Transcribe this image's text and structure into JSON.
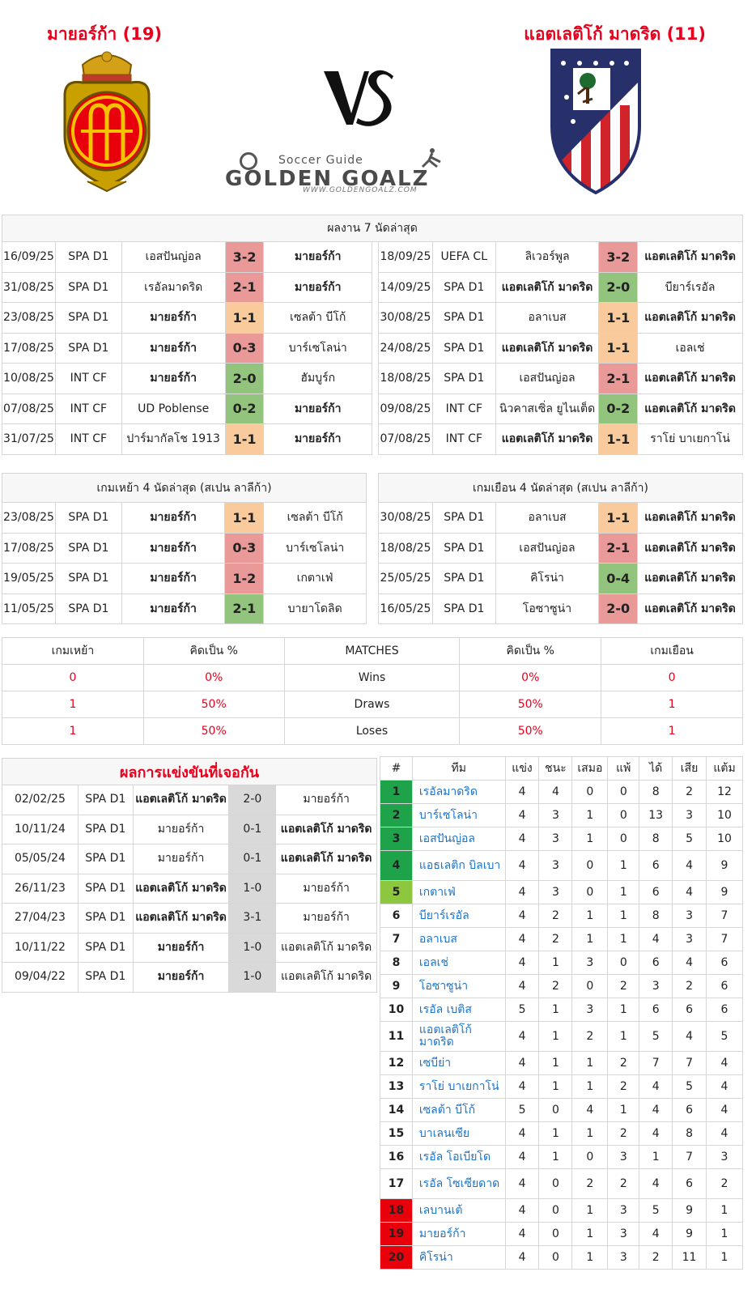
{
  "header": {
    "home_title": "มายอร์ก้า (19)",
    "away_title": "แอตเลติโก้ มาดริด (11)",
    "vs_text": "VS",
    "brand_tagline": "Soccer Guide",
    "brand_name": "GOLDEN GOALZ",
    "brand_url": "WWW.GOLDENGOALZ.COM"
  },
  "last7": {
    "title": "ผลงาน 7 นัดล่าสุด",
    "home": [
      {
        "date": "16/09/25",
        "comp": "SPA D1",
        "home": "เอสปันญ่อล",
        "score": "3-2",
        "away": "มายอร์ก้า",
        "bold": "away",
        "result": "loss"
      },
      {
        "date": "31/08/25",
        "comp": "SPA D1",
        "home": "เรอัลมาดริด",
        "score": "2-1",
        "away": "มายอร์ก้า",
        "bold": "away",
        "result": "loss"
      },
      {
        "date": "23/08/25",
        "comp": "SPA D1",
        "home": "มายอร์ก้า",
        "score": "1-1",
        "away": "เซลต้า บีโก้",
        "bold": "home",
        "result": "draw"
      },
      {
        "date": "17/08/25",
        "comp": "SPA D1",
        "home": "มายอร์ก้า",
        "score": "0-3",
        "away": "บาร์เซโลน่า",
        "bold": "home",
        "result": "loss"
      },
      {
        "date": "10/08/25",
        "comp": "INT CF",
        "home": "มายอร์ก้า",
        "score": "2-0",
        "away": "ฮัมบูร์ก",
        "bold": "home",
        "result": "win"
      },
      {
        "date": "07/08/25",
        "comp": "INT CF",
        "home": "UD Poblense",
        "score": "0-2",
        "away": "มายอร์ก้า",
        "bold": "away",
        "result": "win"
      },
      {
        "date": "31/07/25",
        "comp": "INT CF",
        "home": "ปาร์มากัลโช 1913",
        "score": "1-1",
        "away": "มายอร์ก้า",
        "bold": "away",
        "result": "draw"
      }
    ],
    "away": [
      {
        "date": "18/09/25",
        "comp": "UEFA CL",
        "home": "ลิเวอร์พูล",
        "score": "3-2",
        "away": "แอตเลติโก้ มาดริด",
        "bold": "away",
        "result": "loss"
      },
      {
        "date": "14/09/25",
        "comp": "SPA D1",
        "home": "แอตเลติโก้ มาดริด",
        "score": "2-0",
        "away": "บียาร์เรอัล",
        "bold": "home",
        "result": "win"
      },
      {
        "date": "30/08/25",
        "comp": "SPA D1",
        "home": "อลาเบส",
        "score": "1-1",
        "away": "แอตเลติโก้ มาดริด",
        "bold": "away",
        "result": "draw"
      },
      {
        "date": "24/08/25",
        "comp": "SPA D1",
        "home": "แอตเลติโก้ มาดริด",
        "score": "1-1",
        "away": "เอลเช่",
        "bold": "home",
        "result": "draw"
      },
      {
        "date": "18/08/25",
        "comp": "SPA D1",
        "home": "เอสปันญ่อล",
        "score": "2-1",
        "away": "แอตเลติโก้ มาดริด",
        "bold": "away",
        "result": "loss"
      },
      {
        "date": "09/08/25",
        "comp": "INT CF",
        "home": "นิวคาสเซิ่ล ยูไนเต็ด",
        "score": "0-2",
        "away": "แอตเลติโก้ มาดริด",
        "bold": "away",
        "result": "win"
      },
      {
        "date": "07/08/25",
        "comp": "INT CF",
        "home": "แอตเลติโก้ มาดริด",
        "score": "1-1",
        "away": "ราโย่ บาเยกาโน่",
        "bold": "home",
        "result": "draw"
      }
    ]
  },
  "last4": {
    "home_title": "เกมเหย้า 4 นัดล่าสุด (สเปน ลาลีก้า)",
    "away_title": "เกมเยือน 4 นัดล่าสุด (สเปน ลาลีก้า)",
    "home": [
      {
        "date": "23/08/25",
        "comp": "SPA D1",
        "home": "มายอร์ก้า",
        "score": "1-1",
        "away": "เซลต้า บีโก้",
        "bold": "home",
        "result": "draw"
      },
      {
        "date": "17/08/25",
        "comp": "SPA D1",
        "home": "มายอร์ก้า",
        "score": "0-3",
        "away": "บาร์เซโลน่า",
        "bold": "home",
        "result": "loss"
      },
      {
        "date": "19/05/25",
        "comp": "SPA D1",
        "home": "มายอร์ก้า",
        "score": "1-2",
        "away": "เกตาเฟ่",
        "bold": "home",
        "result": "loss"
      },
      {
        "date": "11/05/25",
        "comp": "SPA D1",
        "home": "มายอร์ก้า",
        "score": "2-1",
        "away": "บายาโดลิด",
        "bold": "home",
        "result": "win"
      }
    ],
    "away": [
      {
        "date": "30/08/25",
        "comp": "SPA D1",
        "home": "อลาเบส",
        "score": "1-1",
        "away": "แอตเลติโก้ มาดริด",
        "bold": "away",
        "result": "draw"
      },
      {
        "date": "18/08/25",
        "comp": "SPA D1",
        "home": "เอสปันญ่อล",
        "score": "2-1",
        "away": "แอตเลติโก้ มาดริด",
        "bold": "away",
        "result": "loss"
      },
      {
        "date": "25/05/25",
        "comp": "SPA D1",
        "home": "คิโรน่า",
        "score": "0-4",
        "away": "แอตเลติโก้ มาดริด",
        "bold": "away",
        "result": "win"
      },
      {
        "date": "16/05/25",
        "comp": "SPA D1",
        "home": "โอซาซูน่า",
        "score": "2-0",
        "away": "แอตเลติโก้ มาดริด",
        "bold": "away",
        "result": "loss"
      }
    ]
  },
  "summary": {
    "headers": [
      "เกมเหย้า",
      "คิดเป็น %",
      "MATCHES",
      "คิดเป็น %",
      "เกมเยือน"
    ],
    "rows": [
      {
        "home": "0",
        "home_pct": "0%",
        "label": "Wins",
        "away_pct": "0%",
        "away": "0"
      },
      {
        "home": "1",
        "home_pct": "50%",
        "label": "Draws",
        "away_pct": "50%",
        "away": "1"
      },
      {
        "home": "1",
        "home_pct": "50%",
        "label": "Loses",
        "away_pct": "50%",
        "away": "1"
      }
    ]
  },
  "h2h": {
    "title": "ผลการแข่งขันที่เจอกัน",
    "rows": [
      {
        "date": "02/02/25",
        "comp": "SPA D1",
        "home": "แอตเลติโก้ มาดริด",
        "score": "2-0",
        "away": "มายอร์ก้า",
        "bold": "home"
      },
      {
        "date": "10/11/24",
        "comp": "SPA D1",
        "home": "มายอร์ก้า",
        "score": "0-1",
        "away": "แอตเลติโก้ มาดริด",
        "bold": "away"
      },
      {
        "date": "05/05/24",
        "comp": "SPA D1",
        "home": "มายอร์ก้า",
        "score": "0-1",
        "away": "แอตเลติโก้ มาดริด",
        "bold": "away"
      },
      {
        "date": "26/11/23",
        "comp": "SPA D1",
        "home": "แอตเลติโก้ มาดริด",
        "score": "1-0",
        "away": "มายอร์ก้า",
        "bold": "home"
      },
      {
        "date": "27/04/23",
        "comp": "SPA D1",
        "home": "แอตเลติโก้ มาดริด",
        "score": "3-1",
        "away": "มายอร์ก้า",
        "bold": "home"
      },
      {
        "date": "10/11/22",
        "comp": "SPA D1",
        "home": "มายอร์ก้า",
        "score": "1-0",
        "away": "แอตเลติโก้ มาดริด",
        "bold": "home"
      },
      {
        "date": "09/04/22",
        "comp": "SPA D1",
        "home": "มายอร์ก้า",
        "score": "1-0",
        "away": "แอตเลติโก้ มาดริด",
        "bold": "home"
      }
    ]
  },
  "league": {
    "headers": [
      "#",
      "ทีม",
      "แข่ง",
      "ชนะ",
      "เสมอ",
      "แพ้",
      "ได้",
      "เสีย",
      "แต้ม"
    ],
    "rows": [
      {
        "pos": "1",
        "team": "เรอัลมาดริด",
        "p": "4",
        "w": "4",
        "d": "0",
        "l": "0",
        "gf": "8",
        "ga": "2",
        "pts": "12",
        "zone": "green"
      },
      {
        "pos": "2",
        "team": "บาร์เซโลน่า",
        "p": "4",
        "w": "3",
        "d": "1",
        "l": "0",
        "gf": "13",
        "ga": "3",
        "pts": "10",
        "zone": "green"
      },
      {
        "pos": "3",
        "team": "เอสปันญ่อล",
        "p": "4",
        "w": "3",
        "d": "1",
        "l": "0",
        "gf": "8",
        "ga": "5",
        "pts": "10",
        "zone": "green"
      },
      {
        "pos": "4",
        "team": "แอธเลติก บิลเบา",
        "p": "4",
        "w": "3",
        "d": "0",
        "l": "1",
        "gf": "6",
        "ga": "4",
        "pts": "9",
        "zone": "green"
      },
      {
        "pos": "5",
        "team": "เกตาเฟ่",
        "p": "4",
        "w": "3",
        "d": "0",
        "l": "1",
        "gf": "6",
        "ga": "4",
        "pts": "9",
        "zone": "lgreen"
      },
      {
        "pos": "6",
        "team": "บียาร์เรอัล",
        "p": "4",
        "w": "2",
        "d": "1",
        "l": "1",
        "gf": "8",
        "ga": "3",
        "pts": "7",
        "zone": ""
      },
      {
        "pos": "7",
        "team": "อลาเบส",
        "p": "4",
        "w": "2",
        "d": "1",
        "l": "1",
        "gf": "4",
        "ga": "3",
        "pts": "7",
        "zone": ""
      },
      {
        "pos": "8",
        "team": "เอลเช่",
        "p": "4",
        "w": "1",
        "d": "3",
        "l": "0",
        "gf": "6",
        "ga": "4",
        "pts": "6",
        "zone": ""
      },
      {
        "pos": "9",
        "team": "โอซาซูน่า",
        "p": "4",
        "w": "2",
        "d": "0",
        "l": "2",
        "gf": "3",
        "ga": "2",
        "pts": "6",
        "zone": ""
      },
      {
        "pos": "10",
        "team": "เรอัล เบติส",
        "p": "5",
        "w": "1",
        "d": "3",
        "l": "1",
        "gf": "6",
        "ga": "6",
        "pts": "6",
        "zone": ""
      },
      {
        "pos": "11",
        "team": "แอตเลติโก้ มาดริด",
        "p": "4",
        "w": "1",
        "d": "2",
        "l": "1",
        "gf": "5",
        "ga": "4",
        "pts": "5",
        "zone": ""
      },
      {
        "pos": "12",
        "team": "เซบีย่า",
        "p": "4",
        "w": "1",
        "d": "1",
        "l": "2",
        "gf": "7",
        "ga": "7",
        "pts": "4",
        "zone": ""
      },
      {
        "pos": "13",
        "team": "ราโย่ บาเยกาโน่",
        "p": "4",
        "w": "1",
        "d": "1",
        "l": "2",
        "gf": "4",
        "ga": "5",
        "pts": "4",
        "zone": ""
      },
      {
        "pos": "14",
        "team": "เซลต้า บีโก้",
        "p": "5",
        "w": "0",
        "d": "4",
        "l": "1",
        "gf": "4",
        "ga": "6",
        "pts": "4",
        "zone": ""
      },
      {
        "pos": "15",
        "team": "บาเลนเซีย",
        "p": "4",
        "w": "1",
        "d": "1",
        "l": "2",
        "gf": "4",
        "ga": "8",
        "pts": "4",
        "zone": ""
      },
      {
        "pos": "16",
        "team": "เรอัล โอเบียโด",
        "p": "4",
        "w": "1",
        "d": "0",
        "l": "3",
        "gf": "1",
        "ga": "7",
        "pts": "3",
        "zone": ""
      },
      {
        "pos": "17",
        "team": "เรอัล โซเซียดาด",
        "p": "4",
        "w": "0",
        "d": "2",
        "l": "2",
        "gf": "4",
        "ga": "6",
        "pts": "2",
        "zone": ""
      },
      {
        "pos": "18",
        "team": "เลบานเต้",
        "p": "4",
        "w": "0",
        "d": "1",
        "l": "3",
        "gf": "5",
        "ga": "9",
        "pts": "1",
        "zone": "red"
      },
      {
        "pos": "19",
        "team": "มายอร์ก้า",
        "p": "4",
        "w": "0",
        "d": "1",
        "l": "3",
        "gf": "4",
        "ga": "9",
        "pts": "1",
        "zone": "red"
      },
      {
        "pos": "20",
        "team": "คิโรน่า",
        "p": "4",
        "w": "0",
        "d": "1",
        "l": "3",
        "gf": "2",
        "ga": "11",
        "pts": "1",
        "zone": "red"
      }
    ]
  }
}
